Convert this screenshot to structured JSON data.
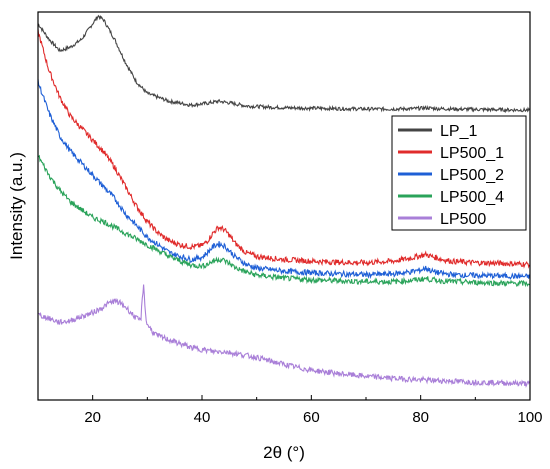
{
  "chart_data": {
    "type": "line",
    "xlabel": "2θ (°)",
    "ylabel": "Intensity (a.u.)",
    "xlim": [
      10,
      100
    ],
    "x_ticks": [
      20,
      40,
      60,
      80,
      100
    ],
    "y_ticks_shown": false,
    "grid": false,
    "legend_position": "right",
    "series": [
      {
        "name": "LP_1",
        "color": "#444444",
        "x": [
          10,
          12,
          14,
          16,
          18,
          20,
          21,
          22,
          24,
          26,
          28,
          30,
          34,
          38,
          41,
          43,
          45,
          48,
          52,
          56,
          60,
          65,
          70,
          75,
          79,
          81,
          83,
          86,
          90,
          95,
          100
        ],
        "y": [
          97,
          93,
          90,
          91,
          93,
          97,
          99,
          98,
          93,
          87,
          82,
          79,
          77,
          76,
          76.5,
          77,
          76.6,
          75.8,
          75.5,
          75.3,
          75.2,
          75.1,
          75,
          75,
          75.1,
          75.3,
          75.1,
          75,
          74.9,
          74.8,
          74.7
        ]
      },
      {
        "name": "LP500_1",
        "color": "#e02b2b",
        "x": [
          10,
          12,
          14,
          16,
          18,
          20,
          22,
          24,
          26,
          28,
          30,
          32,
          34,
          36,
          38,
          40,
          41,
          42,
          43,
          44,
          45,
          46,
          48,
          50,
          55,
          60,
          65,
          70,
          75,
          78,
          80,
          81,
          82,
          84,
          86,
          90,
          95,
          100
        ],
        "y": [
          95,
          85,
          78,
          73,
          70,
          67,
          64,
          60,
          55,
          50,
          46,
          43,
          41,
          40,
          39.5,
          39.8,
          41,
          43,
          44.5,
          44,
          42.5,
          40.5,
          38,
          37,
          36.2,
          35.8,
          35.5,
          35.4,
          35.8,
          36.5,
          37.2,
          37.5,
          37,
          36.2,
          35.7,
          35.4,
          35.2,
          35
        ]
      },
      {
        "name": "LP500_2",
        "color": "#1e5fd6",
        "x": [
          10,
          12,
          14,
          16,
          18,
          20,
          22,
          24,
          26,
          28,
          30,
          32,
          34,
          36,
          38,
          40,
          41,
          42,
          43,
          44,
          45,
          46,
          48,
          50,
          55,
          60,
          65,
          70,
          75,
          78,
          80,
          81,
          82,
          84,
          86,
          90,
          95,
          100
        ],
        "y": [
          82,
          74,
          68,
          64,
          61,
          58,
          55,
          52,
          48,
          45,
          42,
          40,
          38,
          37,
          36.2,
          36.8,
          38,
          39.5,
          40.3,
          39.8,
          38.5,
          37,
          35,
          34,
          33.2,
          32.8,
          32.5,
          32.3,
          32.5,
          33,
          33.5,
          34,
          33.2,
          32.6,
          32.3,
          32.1,
          32,
          31.8
        ]
      },
      {
        "name": "LP500_4",
        "color": "#2aa35a",
        "x": [
          10,
          12,
          14,
          16,
          18,
          20,
          22,
          24,
          26,
          28,
          30,
          32,
          34,
          36,
          38,
          40,
          41,
          42,
          43,
          44,
          45,
          46,
          48,
          50,
          55,
          60,
          65,
          70,
          75,
          78,
          80,
          81,
          82,
          84,
          86,
          90,
          95,
          100
        ],
        "y": [
          63,
          58,
          54,
          51,
          49,
          47,
          46,
          44.5,
          43,
          41.5,
          40,
          38.5,
          37,
          35.8,
          34.8,
          34.5,
          35,
          35.8,
          36.3,
          36,
          35.2,
          34.2,
          33,
          32.2,
          31.4,
          31,
          30.7,
          30.5,
          30.5,
          30.8,
          31.1,
          31.3,
          31,
          30.7,
          30.5,
          30.3,
          30.1,
          30
        ]
      },
      {
        "name": "LP500",
        "color": "#a97fd8",
        "x": [
          10,
          12,
          14,
          16,
          18,
          20,
          22,
          23,
          24,
          25,
          26,
          27,
          28,
          28.8,
          29.3,
          29.8,
          31,
          32,
          34,
          36,
          38,
          40,
          42,
          44,
          46,
          48,
          50,
          52,
          55,
          58,
          60,
          65,
          70,
          75,
          80,
          85,
          90,
          95,
          100
        ],
        "y": [
          22,
          21,
          20,
          20.5,
          21.5,
          22.5,
          24,
          25,
          25.5,
          25,
          24,
          22.5,
          21,
          20.5,
          30,
          20,
          17.5,
          16.5,
          15.5,
          14.5,
          13.5,
          13,
          12.5,
          12.5,
          12,
          11.5,
          11,
          10.2,
          9.2,
          8.2,
          7.7,
          6.8,
          6.1,
          5.6,
          5.2,
          4.9,
          4.6,
          4.4,
          4.2
        ]
      }
    ]
  }
}
